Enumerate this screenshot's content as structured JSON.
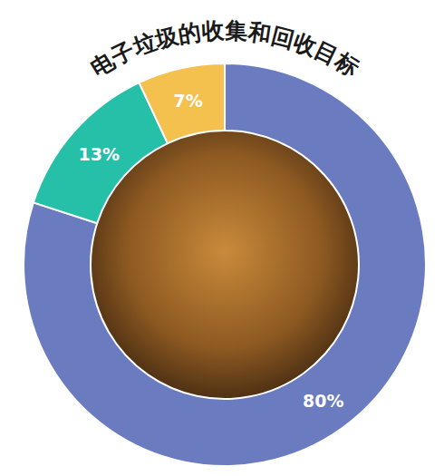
{
  "chart_data": {
    "type": "donut",
    "title": "电子垃圾的收集和回收目标",
    "values": [
      80,
      13,
      7
    ],
    "value_labels": [
      "80%",
      "13%",
      "7%"
    ],
    "colors": [
      "#6a7bc0",
      "#26bfa7",
      "#f4c04e"
    ],
    "data_labels": true
  }
}
